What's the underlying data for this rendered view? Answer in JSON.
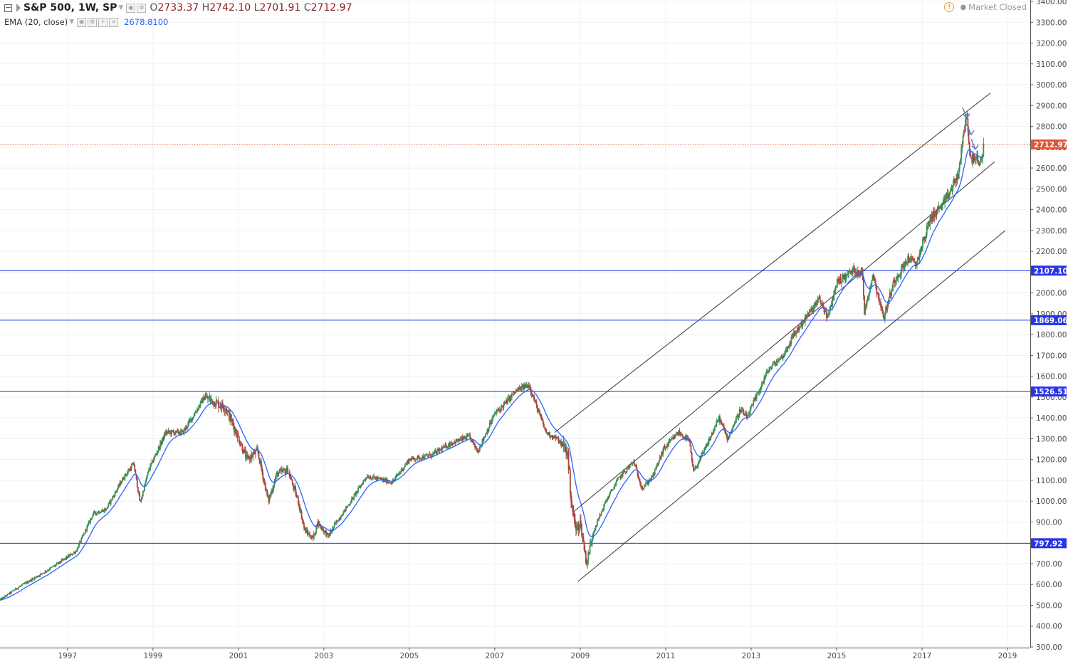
{
  "header": {
    "symbol": "S&P 500, 1W, SP",
    "open_label": "O",
    "open": "2733.37",
    "high_label": "H",
    "high": "2742.10",
    "low_label": "L",
    "low": "2701.91",
    "close_label": "C",
    "close": "2712.97",
    "ema_label": "EMA (20, close)",
    "ema_value": "2678.8100",
    "market_status": "Market Closed"
  },
  "colors": {
    "up_candle": "#3a8f5a",
    "down_candle": "#a8443c",
    "ema_line": "#2962ff",
    "horizontal_line": "#2934e6",
    "channel_line": "#333333",
    "last_price": "#e0553a",
    "arrow_marks": "#5b7fd6",
    "grid": "#eef0f3"
  },
  "chart_data": {
    "type": "candlestick",
    "title": "S&P 500, 1W, SP",
    "price_scale": {
      "min": 300,
      "max": 3400,
      "ticks": [
        300,
        400,
        500,
        600,
        700,
        800,
        900,
        1000,
        1100,
        1200,
        1300,
        1400,
        1500,
        1600,
        1700,
        1800,
        1900,
        2000,
        2100,
        2200,
        2300,
        2400,
        2500,
        2600,
        2700,
        2800,
        2900,
        3000,
        3100,
        3200,
        3300,
        3400
      ],
      "position": "right"
    },
    "time_scale": {
      "start": 1995.42,
      "end": 2019.75,
      "ticks": [
        "1997",
        "1999",
        "2001",
        "2003",
        "2005",
        "2007",
        "2009",
        "2011",
        "2013",
        "2015",
        "2017",
        "2019"
      ]
    },
    "price_path": [
      [
        1995.42,
        525
      ],
      [
        1995.8,
        580
      ],
      [
        1996.3,
        640
      ],
      [
        1996.7,
        690
      ],
      [
        1997.2,
        760
      ],
      [
        1997.6,
        940
      ],
      [
        1997.9,
        960
      ],
      [
        1998.3,
        1110
      ],
      [
        1998.55,
        1180
      ],
      [
        1998.7,
        990
      ],
      [
        1998.9,
        1150
      ],
      [
        1999.3,
        1330
      ],
      [
        1999.7,
        1330
      ],
      [
        2000.0,
        1430
      ],
      [
        2000.2,
        1500
      ],
      [
        2000.5,
        1470
      ],
      [
        2000.7,
        1450
      ],
      [
        2000.95,
        1330
      ],
      [
        2001.2,
        1200
      ],
      [
        2001.45,
        1240
      ],
      [
        2001.7,
        1000
      ],
      [
        2001.9,
        1130
      ],
      [
        2002.15,
        1150
      ],
      [
        2002.4,
        1000
      ],
      [
        2002.55,
        860
      ],
      [
        2002.75,
        820
      ],
      [
        2002.85,
        900
      ],
      [
        2003.1,
        830
      ],
      [
        2003.3,
        900
      ],
      [
        2003.6,
        990
      ],
      [
        2004.0,
        1120
      ],
      [
        2004.6,
        1090
      ],
      [
        2005.0,
        1200
      ],
      [
        2005.5,
        1220
      ],
      [
        2006.0,
        1280
      ],
      [
        2006.4,
        1310
      ],
      [
        2006.6,
        1240
      ],
      [
        2007.0,
        1420
      ],
      [
        2007.2,
        1460
      ],
      [
        2007.5,
        1530
      ],
      [
        2007.8,
        1560
      ],
      [
        2007.95,
        1470
      ],
      [
        2008.2,
        1330
      ],
      [
        2008.45,
        1300
      ],
      [
        2008.7,
        1240
      ],
      [
        2008.8,
        980
      ],
      [
        2008.9,
        860
      ],
      [
        2009.0,
        900
      ],
      [
        2009.15,
        700
      ],
      [
        2009.3,
        850
      ],
      [
        2009.6,
        1000
      ],
      [
        2009.9,
        1110
      ],
      [
        2010.25,
        1190
      ],
      [
        2010.45,
        1060
      ],
      [
        2010.7,
        1120
      ],
      [
        2010.95,
        1250
      ],
      [
        2011.3,
        1330
      ],
      [
        2011.55,
        1290
      ],
      [
        2011.65,
        1140
      ],
      [
        2011.9,
        1240
      ],
      [
        2012.25,
        1400
      ],
      [
        2012.45,
        1300
      ],
      [
        2012.75,
        1440
      ],
      [
        2012.9,
        1400
      ],
      [
        2013.4,
        1630
      ],
      [
        2013.75,
        1700
      ],
      [
        2014.0,
        1800
      ],
      [
        2014.35,
        1900
      ],
      [
        2014.6,
        1970
      ],
      [
        2014.8,
        1880
      ],
      [
        2015.0,
        2050
      ],
      [
        2015.4,
        2110
      ],
      [
        2015.6,
        2100
      ],
      [
        2015.65,
        1910
      ],
      [
        2015.85,
        2090
      ],
      [
        2016.1,
        1880
      ],
      [
        2016.35,
        2060
      ],
      [
        2016.7,
        2170
      ],
      [
        2016.85,
        2130
      ],
      [
        2017.2,
        2360
      ],
      [
        2017.55,
        2440
      ],
      [
        2017.85,
        2570
      ],
      [
        2018.0,
        2800
      ],
      [
        2018.05,
        2870
      ],
      [
        2018.12,
        2640
      ],
      [
        2018.25,
        2660
      ],
      [
        2018.35,
        2600
      ],
      [
        2018.45,
        2713
      ]
    ],
    "ema_period": 20,
    "horizontal_levels": [
      "2107.10",
      "1869.06",
      "1526.51",
      "797.92"
    ],
    "last_price_label": "2712.97",
    "trend_channels": [
      {
        "name": "upper",
        "from": [
          2008.4,
          1330
        ],
        "to": [
          2018.6,
          2960
        ]
      },
      {
        "name": "middle",
        "from": [
          2008.85,
          950
        ],
        "to": [
          2018.7,
          2630
        ]
      },
      {
        "name": "lower",
        "from": [
          2008.95,
          615
        ],
        "to": [
          2018.95,
          2300
        ]
      }
    ],
    "grid": true
  }
}
